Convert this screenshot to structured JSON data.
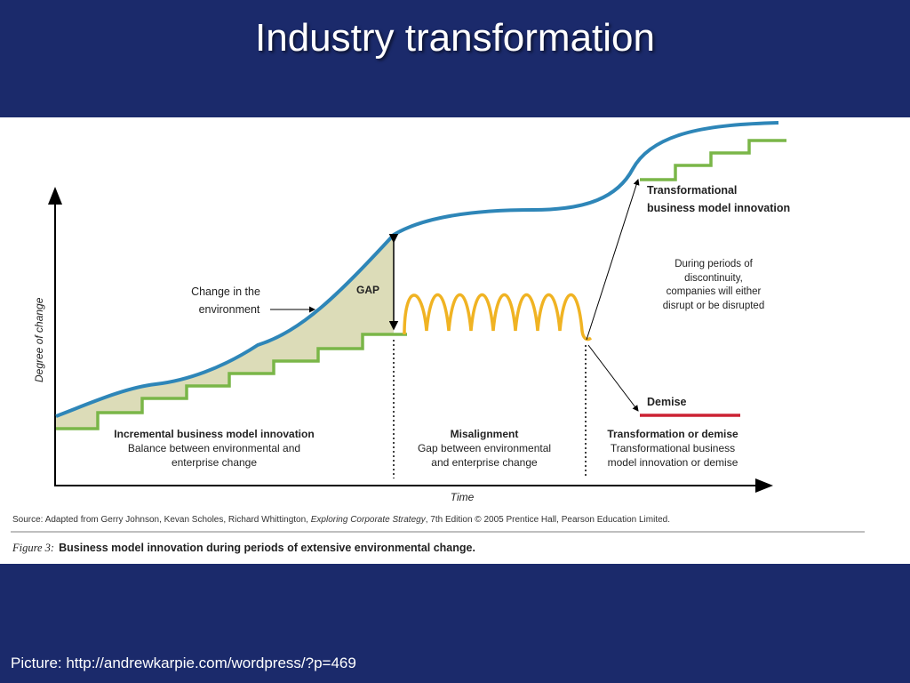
{
  "slide": {
    "title": "Industry transformation",
    "credit": "Picture: http://andrewkarpie.com/wordpress/?p=469"
  },
  "diagram": {
    "y_axis_label": "Degree of change",
    "x_axis_label": "Time",
    "change_label_1": "Change in the",
    "change_label_2": "environment",
    "gap_label": "GAP",
    "transformational_1": "Transformational",
    "transformational_2": "business model innovation",
    "discontinuity_1": "During periods of",
    "discontinuity_2": "discontinuity,",
    "discontinuity_3": "companies will either",
    "discontinuity_4": "disrupt or be disrupted",
    "demise_label": "Demise",
    "phases": [
      {
        "title": "Incremental  business model innovation",
        "line1": "Balance between environmental and",
        "line2": "enterprise change"
      },
      {
        "title": "Misalignment",
        "line1": "Gap between environmental",
        "line2": "and enterprise change"
      },
      {
        "title": "Transformation or demise",
        "line1": "Transformational business",
        "line2": "model innovation or demise"
      }
    ],
    "source_prefix": "Source: Adapted from Gerry Johnson, Kevan Scholes, Richard Whittington, ",
    "source_book": "Exploring Corporate Strategy",
    "source_suffix": ", 7th Edition © 2005 Prentice Hall, Pearson Education Limited.",
    "figure_number": "Figure 3:",
    "figure_caption": "Business model innovation during periods of extensive environmental change."
  },
  "colors": {
    "background": "#1b2a6b",
    "environment_curve": "#2e86b8",
    "enterprise_steps": "#7ab648",
    "misalignment_wave": "#f0b323",
    "demise_line": "#cc2233",
    "gap_fill": "#dcdcb8"
  }
}
